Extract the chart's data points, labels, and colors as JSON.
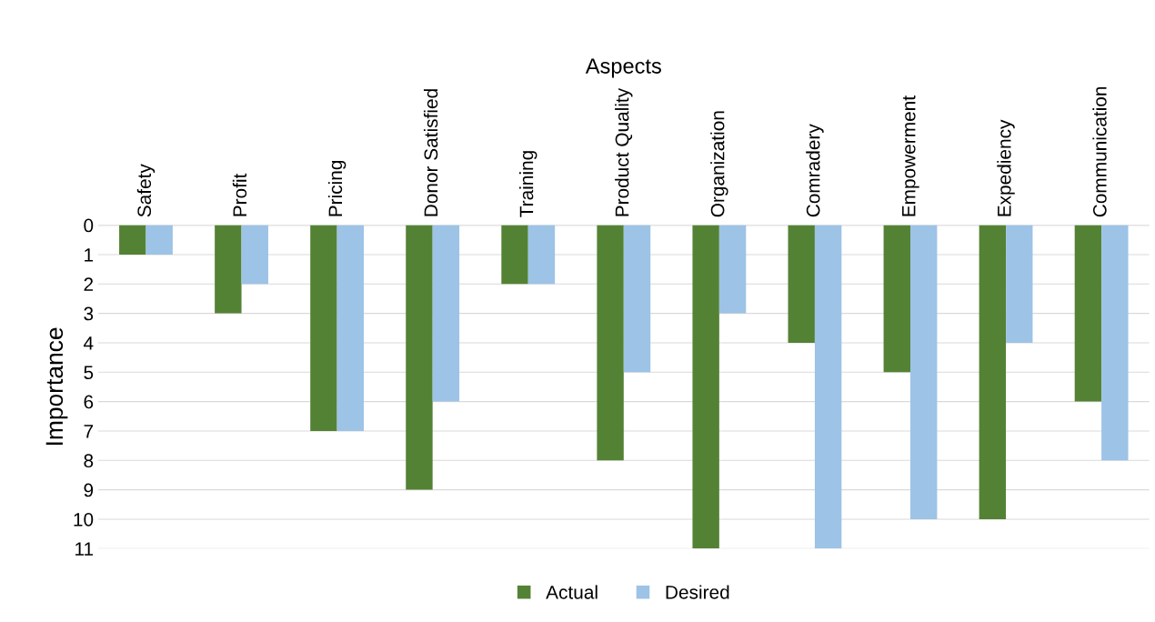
{
  "chart_data": {
    "type": "bar",
    "xlabel": "Aspects",
    "ylabel": "Importance",
    "categories": [
      "Safety",
      "Profit",
      "Pricing",
      "Donor Satisfied",
      "Training",
      "Product Quality",
      "Organization",
      "Comradery",
      "Empowerment",
      "Expediency",
      "Communication"
    ],
    "series": [
      {
        "name": "Actual",
        "color": "#548235",
        "values": [
          1,
          3,
          7,
          9,
          2,
          8,
          11,
          4,
          5,
          10,
          6
        ]
      },
      {
        "name": "Desired",
        "color": "#9dc3e6",
        "values": [
          1,
          2,
          7,
          6,
          2,
          5,
          3,
          11,
          10,
          4,
          8
        ]
      }
    ],
    "ylim": [
      11,
      0
    ],
    "yticks": [
      0,
      1,
      2,
      3,
      4,
      5,
      6,
      7,
      8,
      9,
      10,
      11
    ],
    "grid": "y",
    "legend": "bottom"
  }
}
